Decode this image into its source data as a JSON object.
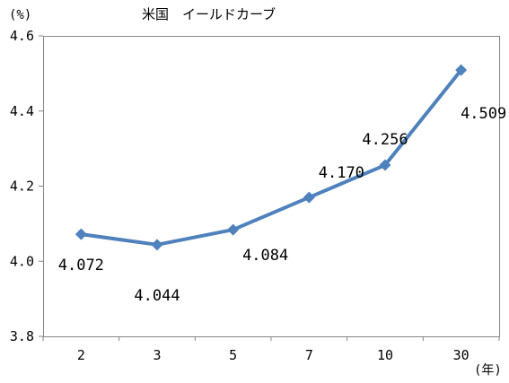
{
  "chart_data": {
    "type": "line",
    "title": "米国　イールドカーブ",
    "y_unit": "(%)",
    "x_unit": "(年)",
    "categories": [
      "2",
      "3",
      "5",
      "7",
      "10",
      "30"
    ],
    "series": [
      {
        "values": [
          4.072,
          4.044,
          4.084,
          4.17,
          4.256,
          4.509
        ],
        "data_labels": [
          "4.072",
          "4.044",
          "4.084",
          "4.170",
          "4.256",
          "4.509"
        ],
        "color": "#4F81BD"
      }
    ],
    "ylim": [
      3.8,
      4.6
    ],
    "yticks": [
      3.8,
      4.0,
      4.2,
      4.4,
      4.6
    ],
    "ytick_labels": [
      "3.8",
      "4.0",
      "4.2",
      "4.4",
      "4.6"
    ],
    "grid": false,
    "marker": "diamond"
  }
}
